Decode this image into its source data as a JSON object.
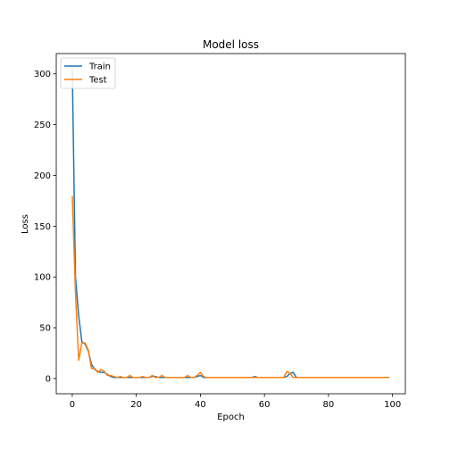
{
  "chart_data": {
    "type": "line",
    "title": "Model loss",
    "xlabel": "Epoch",
    "ylabel": "Loss",
    "xlim": [
      -5,
      104
    ],
    "ylim": [
      -15,
      320
    ],
    "xticks": [
      0,
      20,
      40,
      60,
      80,
      100
    ],
    "yticks": [
      0,
      50,
      100,
      150,
      200,
      250,
      300
    ],
    "grid": false,
    "legend": {
      "position": "top-left",
      "entries": [
        "Train",
        "Test"
      ]
    },
    "series": [
      {
        "name": "Train",
        "color": "#1f77b4",
        "x": [
          0,
          1,
          2,
          3,
          4,
          5,
          6,
          7,
          8,
          9,
          10,
          11,
          12,
          13,
          14,
          15,
          16,
          17,
          18,
          19,
          20,
          21,
          22,
          23,
          24,
          25,
          26,
          27,
          28,
          29,
          30,
          31,
          32,
          33,
          34,
          35,
          36,
          37,
          38,
          39,
          40,
          41,
          42,
          43,
          44,
          45,
          46,
          47,
          48,
          49,
          50,
          51,
          52,
          53,
          54,
          55,
          56,
          57,
          58,
          59,
          60,
          61,
          62,
          63,
          64,
          65,
          66,
          67,
          68,
          69,
          70,
          71,
          72,
          73,
          74,
          75,
          76,
          77,
          78,
          79,
          80,
          81,
          82,
          83,
          84,
          85,
          86,
          87,
          88,
          89,
          90,
          91,
          92,
          93,
          94,
          95,
          96,
          97,
          98,
          99
        ],
        "values": [
          305,
          100,
          62,
          36,
          34,
          27,
          14,
          9,
          7,
          6,
          6,
          4,
          2,
          1,
          1,
          1,
          1,
          1,
          1,
          1,
          1,
          1,
          1,
          1,
          1,
          2,
          2,
          1,
          1,
          1,
          1,
          1,
          1,
          1,
          1,
          1,
          1,
          1,
          1,
          2,
          3,
          1,
          1,
          1,
          1,
          1,
          1,
          1,
          1,
          1,
          1,
          1,
          1,
          1,
          1,
          1,
          1,
          2,
          1,
          1,
          1,
          1,
          1,
          1,
          1,
          1,
          1,
          2,
          5,
          6,
          1,
          1,
          1,
          1,
          1,
          1,
          1,
          1,
          1,
          1,
          1,
          1,
          1,
          1,
          1,
          1,
          1,
          1,
          1,
          1,
          1,
          1,
          1,
          1,
          1,
          1,
          1,
          1,
          1,
          1
        ]
      },
      {
        "name": "Test",
        "color": "#ff7f0e",
        "x": [
          0,
          1,
          2,
          3,
          4,
          5,
          6,
          7,
          8,
          9,
          10,
          11,
          12,
          13,
          14,
          15,
          16,
          17,
          18,
          19,
          20,
          21,
          22,
          23,
          24,
          25,
          26,
          27,
          28,
          29,
          30,
          31,
          32,
          33,
          34,
          35,
          36,
          37,
          38,
          39,
          40,
          41,
          42,
          43,
          44,
          45,
          46,
          47,
          48,
          49,
          50,
          51,
          52,
          53,
          54,
          55,
          56,
          57,
          58,
          59,
          60,
          61,
          62,
          63,
          64,
          65,
          66,
          67,
          68,
          69,
          70,
          71,
          72,
          73,
          74,
          75,
          76,
          77,
          78,
          79,
          80,
          81,
          82,
          83,
          84,
          85,
          86,
          87,
          88,
          89,
          90,
          91,
          92,
          93,
          94,
          95,
          96,
          97,
          98,
          99
        ],
        "values": [
          180,
          85,
          18,
          35,
          35,
          28,
          10,
          10,
          6,
          9,
          7,
          3,
          3,
          2,
          1,
          2,
          1,
          1,
          3,
          1,
          1,
          1,
          2,
          1,
          1,
          3,
          1,
          1,
          3,
          1,
          1,
          1,
          1,
          1,
          1,
          1,
          3,
          1,
          1,
          3,
          6,
          2,
          1,
          1,
          1,
          1,
          1,
          1,
          1,
          1,
          1,
          1,
          1,
          1,
          1,
          1,
          1,
          1,
          1,
          1,
          1,
          1,
          1,
          1,
          1,
          1,
          1,
          7,
          5,
          1,
          1,
          1,
          1,
          1,
          1,
          1,
          1,
          1,
          1,
          1,
          1,
          1,
          1,
          1,
          1,
          1,
          1,
          1,
          1,
          1,
          1,
          1,
          1,
          1,
          1,
          1,
          1,
          1,
          1,
          1
        ]
      }
    ]
  }
}
